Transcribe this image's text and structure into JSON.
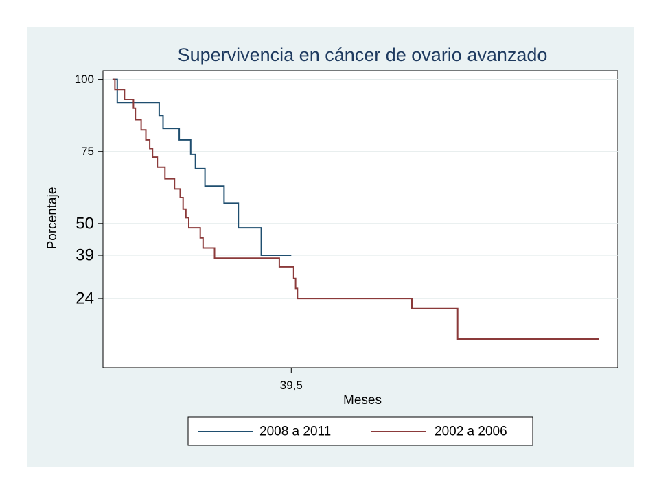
{
  "chart_data": {
    "type": "line",
    "title": "Supervivencia en cáncer de ovario avanzado",
    "xlabel": "Meses",
    "ylabel": "Porcentaje",
    "xlim": [
      0,
      108
    ],
    "ylim": [
      0,
      103
    ],
    "x_ticks": [
      {
        "value": 39.5,
        "label": "39,5"
      }
    ],
    "y_ticks": [
      {
        "value": 100,
        "label": "100",
        "color": "#000000",
        "size": "normal"
      },
      {
        "value": 75,
        "label": "75",
        "color": "#000000",
        "size": "normal"
      },
      {
        "value": 50,
        "label": "50",
        "color": "#000000",
        "size": "big"
      },
      {
        "value": 39,
        "label": "39",
        "color": "#3d6a8e",
        "size": "big"
      },
      {
        "value": 24,
        "label": "24",
        "color": "#c0143c",
        "size": "big"
      }
    ],
    "grid": true,
    "legend_position": "bottom",
    "series": [
      {
        "name": "2008 a 2011",
        "color": "#1f4e6f",
        "step": true,
        "points": [
          [
            2,
            100
          ],
          [
            3,
            92
          ],
          [
            11,
            92
          ],
          [
            11.8,
            87.5
          ],
          [
            12.6,
            83
          ],
          [
            16,
            83
          ],
          [
            16,
            79
          ],
          [
            18.4,
            79
          ],
          [
            18.4,
            74
          ],
          [
            19.4,
            74
          ],
          [
            19.4,
            69
          ],
          [
            21.4,
            69
          ],
          [
            21.4,
            63
          ],
          [
            25.4,
            63
          ],
          [
            25.4,
            57
          ],
          [
            28.4,
            57
          ],
          [
            28.4,
            48.5
          ],
          [
            33.2,
            48.5
          ],
          [
            33.2,
            39
          ],
          [
            39.5,
            39
          ]
        ]
      },
      {
        "name": "2002 a 2006",
        "color": "#8b3a3a",
        "step": true,
        "points": [
          [
            2,
            100
          ],
          [
            2.5,
            96.5
          ],
          [
            4.5,
            96.5
          ],
          [
            4.5,
            93
          ],
          [
            6,
            93
          ],
          [
            6.4,
            90
          ],
          [
            6.8,
            86
          ],
          [
            7.6,
            86
          ],
          [
            8,
            82.5
          ],
          [
            9,
            82.5
          ],
          [
            9,
            79
          ],
          [
            9.8,
            79
          ],
          [
            9.8,
            76
          ],
          [
            10.4,
            76
          ],
          [
            10.4,
            73
          ],
          [
            11.4,
            73
          ],
          [
            11.4,
            69.5
          ],
          [
            13,
            69.5
          ],
          [
            13,
            65.5
          ],
          [
            15,
            65.5
          ],
          [
            15,
            62
          ],
          [
            16.2,
            62
          ],
          [
            16.2,
            59
          ],
          [
            16.8,
            59
          ],
          [
            16.8,
            55
          ],
          [
            17.4,
            55
          ],
          [
            17.4,
            52
          ],
          [
            18,
            52
          ],
          [
            18,
            48.5
          ],
          [
            20.4,
            48.5
          ],
          [
            20.4,
            45
          ],
          [
            21,
            45
          ],
          [
            21,
            41.5
          ],
          [
            23.4,
            41.5
          ],
          [
            23.4,
            38
          ],
          [
            37,
            38
          ],
          [
            37,
            35
          ],
          [
            40,
            35
          ],
          [
            40,
            31
          ],
          [
            40.4,
            31
          ],
          [
            40.4,
            27.5
          ],
          [
            40.8,
            27.5
          ],
          [
            40.8,
            24
          ],
          [
            64.8,
            24
          ],
          [
            64.8,
            20.5
          ],
          [
            74.4,
            20.5
          ],
          [
            74.4,
            10
          ],
          [
            104,
            10
          ]
        ]
      }
    ]
  }
}
